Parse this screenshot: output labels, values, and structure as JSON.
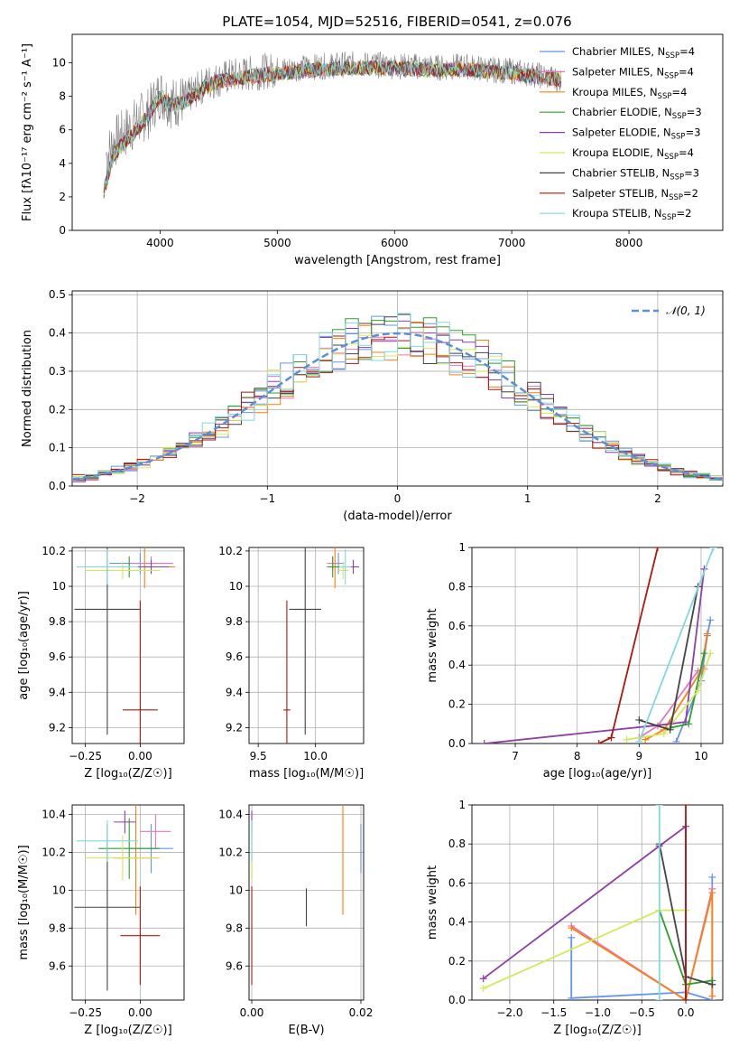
{
  "figure": {
    "title": "PLATE=1054, MJD=52516, FIBERID=0541, z=0.076"
  },
  "models": [
    {
      "name": "Chabrier MILES",
      "nssp": "4",
      "color": "#6495ed"
    },
    {
      "name": "Salpeter MILES",
      "nssp": "4",
      "color": "#e377c2"
    },
    {
      "name": "Kroupa MILES",
      "nssp": "4",
      "color": "#ff7f0e"
    },
    {
      "name": "Chabrier ELODIE",
      "nssp": "3",
      "color": "#2ca02c"
    },
    {
      "name": "Salpeter ELODIE",
      "nssp": "3",
      "color": "#8e3fa5"
    },
    {
      "name": "Kroupa ELODIE",
      "nssp": "4",
      "color": "#d5e85a"
    },
    {
      "name": "Chabrier STELIB",
      "nssp": "3",
      "color": "#444444"
    },
    {
      "name": "Salpeter STELIB",
      "nssp": "2",
      "color": "#b0160e"
    },
    {
      "name": "Kroupa STELIB",
      "nssp": "2",
      "color": "#80d8e0"
    }
  ],
  "chart_data": [
    {
      "id": "spectrum",
      "type": "line",
      "xlabel": "wavelength [Angstrom, rest frame]",
      "ylabel": "Flux [fλ10⁻¹⁷ erg cm⁻² s⁻¹ A⁻¹]",
      "xlim": [
        3250,
        8800
      ],
      "ylim": [
        0,
        11.7
      ],
      "xticks": [
        4000,
        5000,
        6000,
        7000,
        8000
      ],
      "yticks": [
        0,
        2,
        4,
        6,
        8,
        10
      ],
      "data_series": {
        "name": "data",
        "color": "#808080",
        "x": [
          3550,
          3600,
          3700,
          3800,
          3900,
          4000,
          4100,
          4200,
          4300,
          4400,
          4500,
          4600,
          4700,
          4800,
          4900,
          5000,
          5200,
          5400,
          5600,
          5800,
          6000,
          6200,
          6400,
          6600,
          6800,
          7000,
          7200,
          7400
        ],
        "y": [
          4.5,
          5.2,
          5.8,
          6.5,
          7.0,
          8.2,
          7.6,
          7.8,
          8.3,
          8.8,
          9.0,
          9.2,
          9.3,
          9.4,
          9.5,
          9.6,
          9.7,
          9.8,
          9.9,
          9.9,
          9.8,
          9.8,
          9.7,
          9.8,
          9.6,
          9.5,
          9.3,
          9.0
        ]
      },
      "model_curve": {
        "x": [
          3500,
          3600,
          3700,
          3800,
          3900,
          4000,
          4100,
          4200,
          4300,
          4400,
          4500,
          4600,
          4700,
          4800,
          4900,
          5000,
          5200,
          5400,
          5600,
          5800,
          6000,
          6200,
          6400,
          6600,
          6800,
          7000,
          7200,
          7400
        ],
        "y": [
          1.8,
          4.5,
          5.3,
          6.0,
          6.9,
          8.0,
          7.5,
          7.6,
          8.1,
          8.6,
          8.9,
          9.0,
          9.1,
          9.2,
          9.3,
          9.4,
          9.5,
          9.6,
          9.7,
          9.7,
          9.7,
          9.6,
          9.6,
          9.6,
          9.5,
          9.4,
          9.2,
          9.0
        ]
      }
    },
    {
      "id": "residuals",
      "type": "histogram",
      "xlabel": "(data-model)/error",
      "ylabel": "Normed distribution",
      "xlim": [
        -2.5,
        2.5
      ],
      "ylim": [
        0,
        0.51
      ],
      "xticks": [
        -2,
        -1,
        0,
        1,
        2
      ],
      "yticks": [
        0.0,
        0.1,
        0.2,
        0.3,
        0.4,
        0.5
      ],
      "legend": "𝒩(0, 1)",
      "reference_color": "#5b8fd6",
      "bin_width": 0.1
    },
    {
      "id": "age_vs_Z",
      "type": "scatter",
      "xlabel": "Z [log₁₀(Z/Z☉)]",
      "ylabel": "age  [log₁₀(age/yr)]",
      "xlim": [
        -0.31,
        0.2
      ],
      "ylim": [
        9.11,
        10.22
      ],
      "xticks": [
        -0.25,
        0.0
      ],
      "xticklabels": [
        "−0.25",
        "0.00"
      ],
      "yticks": [
        9.2,
        9.4,
        9.6,
        9.8,
        10.0,
        10.2
      ],
      "points": [
        {
          "m": 0,
          "x": 0.0,
          "y": 10.13,
          "xerr": 0.14,
          "yerr": 0.06
        },
        {
          "m": 1,
          "x": 0.05,
          "y": 10.13,
          "xerr": 0.1,
          "yerr": 0.04
        },
        {
          "m": 2,
          "x": 0.02,
          "y": 10.11,
          "xerr": 0.14,
          "yerr": 0.12
        },
        {
          "m": 3,
          "x": -0.05,
          "y": 10.11,
          "xerr": 0.14,
          "yerr": 0.06
        },
        {
          "m": 4,
          "x": 0.05,
          "y": 10.11,
          "xerr": 0.08,
          "yerr": 0.04
        },
        {
          "m": 5,
          "x": -0.08,
          "y": 10.09,
          "xerr": 0.17,
          "yerr": 0.05
        },
        {
          "m": 6,
          "x": -0.15,
          "y": 9.87,
          "xerr": 0.15,
          "yerr": 0.71
        },
        {
          "m": 7,
          "x": 0.0,
          "y": 9.3,
          "xerr": 0.08,
          "yerr": 0.62
        },
        {
          "m": 8,
          "x": -0.15,
          "y": 10.11,
          "xerr": 0.14,
          "yerr": 0.1
        }
      ]
    },
    {
      "id": "age_vs_mass",
      "type": "scatter",
      "xlabel": "mass [log₁₀(M/M☉)]",
      "ylabel": "",
      "xlim": [
        9.42,
        10.42
      ],
      "ylim": [
        9.11,
        10.22
      ],
      "xticks": [
        9.5,
        10.0
      ],
      "xticklabels": [
        "9.5",
        "10.0"
      ],
      "yticks": [
        9.2,
        9.4,
        9.6,
        9.8,
        10.0,
        10.2
      ],
      "points": [
        {
          "m": 0,
          "x": 10.2,
          "y": 10.13,
          "xerr": 0.05,
          "yerr": 0.06
        },
        {
          "m": 1,
          "x": 10.15,
          "y": 10.13,
          "xerr": 0.05,
          "yerr": 0.04
        },
        {
          "m": 2,
          "x": 10.17,
          "y": 10.11,
          "xerr": 0.05,
          "yerr": 0.12
        },
        {
          "m": 3,
          "x": 10.15,
          "y": 10.11,
          "xerr": 0.05,
          "yerr": 0.06
        },
        {
          "m": 4,
          "x": 10.33,
          "y": 10.11,
          "xerr": 0.05,
          "yerr": 0.04
        },
        {
          "m": 5,
          "x": 10.24,
          "y": 10.09,
          "xerr": 0.05,
          "yerr": 0.05
        },
        {
          "m": 6,
          "x": 9.91,
          "y": 9.87,
          "xerr": 0.14,
          "yerr": 0.71
        },
        {
          "m": 7,
          "x": 9.75,
          "y": 9.3,
          "xerr": 0.03,
          "yerr": 0.62
        },
        {
          "m": 8,
          "x": 10.26,
          "y": 10.11,
          "xerr": 0.05,
          "yerr": 0.1
        }
      ]
    },
    {
      "id": "weight_vs_age",
      "type": "line",
      "xlabel": "age  [log₁₀(age/yr)]",
      "ylabel": "mass weight",
      "xlim": [
        6.3,
        10.35
      ],
      "ylim": [
        0,
        1.0
      ],
      "xticks": [
        7,
        8,
        9,
        10
      ],
      "yticks": [
        0.0,
        0.2,
        0.4,
        0.6,
        0.8,
        1.0
      ],
      "series": [
        {
          "m": 0,
          "x": [
            9.6,
            10.0,
            10.1,
            10.15
          ],
          "y": [
            0.01,
            0.32,
            0.55,
            0.63
          ]
        },
        {
          "m": 1,
          "x": [
            9.0,
            9.3,
            9.95,
            10.05
          ],
          "y": [
            0.03,
            0.09,
            0.37,
            0.38
          ]
        },
        {
          "m": 2,
          "x": [
            9.1,
            9.4,
            10.0,
            10.1
          ],
          "y": [
            0.02,
            0.07,
            0.37,
            0.56
          ]
        },
        {
          "m": 3,
          "x": [
            9.5,
            9.8,
            10.05
          ],
          "y": [
            0.08,
            0.1,
            0.46
          ]
        },
        {
          "m": 4,
          "x": [
            6.5,
            9.5,
            9.75,
            10.05
          ],
          "y": [
            0.0,
            0.1,
            0.11,
            0.89
          ]
        },
        {
          "m": 5,
          "x": [
            8.8,
            9.4,
            9.95,
            10.15
          ],
          "y": [
            0.02,
            0.05,
            0.27,
            0.46
          ]
        },
        {
          "m": 6,
          "x": [
            9.0,
            9.5,
            9.95
          ],
          "y": [
            0.12,
            0.07,
            0.8
          ]
        },
        {
          "m": 7,
          "x": [
            8.35,
            8.55,
            9.3
          ],
          "y": [
            0.0,
            0.03,
            1.0
          ]
        },
        {
          "m": 8,
          "x": [
            9.0,
            10.2
          ],
          "y": [
            0.01,
            1.0
          ]
        }
      ]
    },
    {
      "id": "mass_vs_Z",
      "type": "scatter",
      "xlabel": "Z [log₁₀(Z/Z☉)]",
      "ylabel": "mass [log₁₀(M/M☉)]",
      "xlim": [
        -0.31,
        0.2
      ],
      "ylim": [
        9.42,
        10.45
      ],
      "xticks": [
        -0.25,
        0.0
      ],
      "xticklabels": [
        "−0.25",
        "0.00"
      ],
      "yticks": [
        9.6,
        9.8,
        10.0,
        10.2,
        10.4
      ],
      "points": [
        {
          "m": 0,
          "x": 0.05,
          "y": 10.22,
          "xerr": 0.1,
          "yerr": 0.13
        },
        {
          "m": 1,
          "x": 0.07,
          "y": 10.31,
          "xerr": 0.07,
          "yerr": 0.09
        },
        {
          "m": 2,
          "x": -0.02,
          "y": 10.17,
          "xerr": 0.1,
          "yerr": 0.3
        },
        {
          "m": 3,
          "x": -0.05,
          "y": 10.22,
          "xerr": 0.14,
          "yerr": 0.16
        },
        {
          "m": 4,
          "x": -0.07,
          "y": 10.36,
          "xerr": 0.05,
          "yerr": 0.06
        },
        {
          "m": 5,
          "x": -0.08,
          "y": 10.17,
          "xerr": 0.17,
          "yerr": 0.12
        },
        {
          "m": 6,
          "x": -0.15,
          "y": 9.91,
          "xerr": 0.15,
          "yerr": 0.44
        },
        {
          "m": 7,
          "x": 0.0,
          "y": 9.76,
          "xerr": 0.09,
          "yerr": 0.26
        },
        {
          "m": 8,
          "x": -0.15,
          "y": 10.26,
          "xerr": 0.14,
          "yerr": 0.11
        }
      ]
    },
    {
      "id": "mass_vs_ebv",
      "type": "scatter",
      "xlabel": "E(B-V)",
      "ylabel": "",
      "xlim": [
        -0.0005,
        0.0205
      ],
      "ylim": [
        9.42,
        10.45
      ],
      "xticks": [
        0.0,
        0.02
      ],
      "xticklabels": [
        "0.00",
        "0.02"
      ],
      "yticks": [
        9.6,
        9.8,
        10.0,
        10.2,
        10.4
      ],
      "points": [
        {
          "m": 0,
          "x": 0.02,
          "y": 10.22,
          "xerr": 0.0,
          "yerr": 0.13
        },
        {
          "m": 1,
          "x": 0.0167,
          "y": 10.31,
          "xerr": 0.0,
          "yerr": 0.09
        },
        {
          "m": 2,
          "x": 0.0167,
          "y": 10.17,
          "xerr": 0.0,
          "yerr": 0.3
        },
        {
          "m": 3,
          "x": 0.0,
          "y": 10.22,
          "xerr": 0.0,
          "yerr": 0.16
        },
        {
          "m": 4,
          "x": 0.0,
          "y": 10.36,
          "xerr": 0.0,
          "yerr": 0.06
        },
        {
          "m": 5,
          "x": 0.0,
          "y": 10.17,
          "xerr": 0.0,
          "yerr": 0.12
        },
        {
          "m": 6,
          "x": 0.01,
          "y": 9.91,
          "xerr": 0.0,
          "yerr": 0.1
        },
        {
          "m": 7,
          "x": 0.0,
          "y": 9.76,
          "xerr": 0.0,
          "yerr": 0.26
        },
        {
          "m": 8,
          "x": 0.0,
          "y": 10.26,
          "xerr": 0.0,
          "yerr": 0.11
        }
      ]
    },
    {
      "id": "weight_vs_Z",
      "type": "line",
      "xlabel": "Z [log₁₀(Z/Z☉)]",
      "ylabel": "mass weight",
      "xlim": [
        -2.43,
        0.42
      ],
      "ylim": [
        0,
        1.0
      ],
      "xticks": [
        -2.0,
        -1.5,
        -1.0,
        -0.5,
        0.0
      ],
      "xticklabels": [
        "−2.0",
        "−1.5",
        "−1.0",
        "−0.5",
        "0.0"
      ],
      "yticks": [
        0.0,
        0.2,
        0.4,
        0.6,
        0.8,
        1.0
      ],
      "series": [
        {
          "m": 0,
          "x": [
            -1.3,
            -1.3,
            0.0,
            0.3,
            0.3
          ],
          "y": [
            0.32,
            0.01,
            0.04,
            0.0,
            0.63
          ]
        },
        {
          "m": 1,
          "x": [
            -1.3,
            0.0,
            0.3
          ],
          "y": [
            0.38,
            0.0,
            0.57
          ]
        },
        {
          "m": 2,
          "x": [
            -1.3,
            0.0,
            0.3,
            0.3
          ],
          "y": [
            0.37,
            0.0,
            0.55,
            0.02
          ]
        },
        {
          "m": 3,
          "x": [
            -0.3,
            0.0,
            0.3
          ],
          "y": [
            0.46,
            0.08,
            0.1
          ]
        },
        {
          "m": 4,
          "x": [
            -2.3,
            -0.3,
            0.0,
            0.0
          ],
          "y": [
            0.11,
            0.79,
            0.89,
            0.0
          ]
        },
        {
          "m": 5,
          "x": [
            -2.3,
            -0.3,
            0.0
          ],
          "y": [
            0.06,
            0.46,
            0.46
          ]
        },
        {
          "m": 6,
          "x": [
            -0.3,
            0.0,
            0.3
          ],
          "y": [
            0.8,
            0.12,
            0.08
          ]
        },
        {
          "m": 7,
          "x": [
            0.0,
            0.0
          ],
          "y": [
            0.0,
            1.0
          ]
        },
        {
          "m": 8,
          "x": [
            -0.3,
            -0.3
          ],
          "y": [
            0.0,
            1.0
          ]
        }
      ]
    }
  ]
}
